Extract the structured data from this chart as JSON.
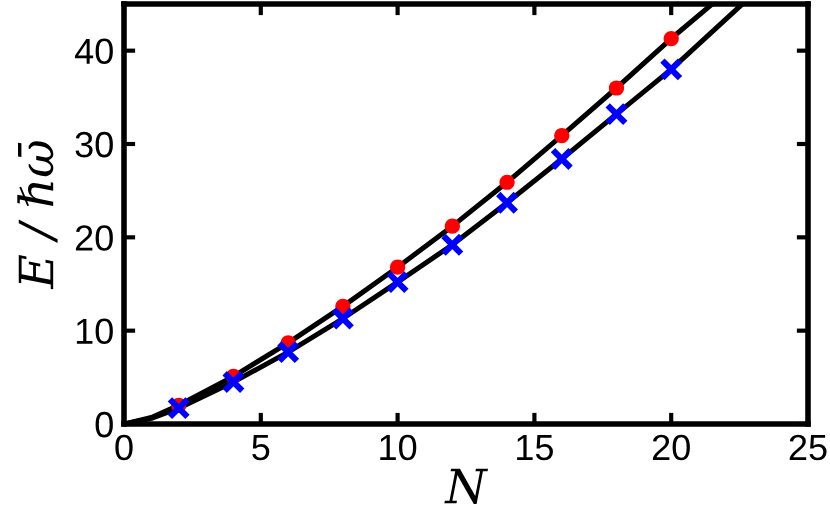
{
  "chart_data": {
    "type": "scatter",
    "xlabel": "N",
    "ylabel": "E / ℏω̄",
    "xlim": [
      0,
      25
    ],
    "ylim": [
      0,
      45
    ],
    "xticks": [
      0,
      5,
      10,
      15,
      20,
      25
    ],
    "yticks": [
      0,
      10,
      20,
      30,
      40
    ],
    "grid": false,
    "legend": false,
    "series": [
      {
        "type": "line",
        "color": "#000000",
        "marker": "none",
        "line_style": "solid",
        "x": [
          0,
          1,
          2,
          4,
          6,
          8,
          10,
          12,
          14,
          16,
          18,
          20,
          21.5
        ],
        "values": [
          0,
          0.7,
          2.0,
          5.1,
          8.7,
          12.6,
          16.8,
          21.2,
          25.9,
          30.9,
          36.0,
          41.3,
          45
        ]
      },
      {
        "type": "line",
        "color": "#000000",
        "marker": "none",
        "line_style": "solid",
        "x": [
          0,
          1,
          2,
          4,
          6,
          8,
          10,
          12,
          14,
          16,
          18,
          20,
          22.6
        ],
        "values": [
          0,
          0.6,
          1.7,
          4.5,
          7.7,
          11.3,
          15.2,
          19.2,
          23.7,
          28.4,
          33.2,
          38.0,
          45
        ]
      },
      {
        "color": "#ff0000",
        "marker": "circle",
        "x": [
          2,
          4,
          6,
          8,
          10,
          12,
          14,
          16,
          18,
          20
        ],
        "values": [
          2.0,
          5.1,
          8.7,
          12.6,
          16.8,
          21.2,
          25.9,
          30.9,
          36.0,
          41.3
        ]
      },
      {
        "color": "#0000ff",
        "marker": "cross",
        "x": [
          2,
          4,
          6,
          8,
          10,
          12,
          14,
          16,
          18,
          20
        ],
        "values": [
          1.7,
          4.5,
          7.7,
          11.3,
          15.2,
          19.2,
          23.7,
          28.4,
          33.2,
          38.0
        ]
      }
    ]
  }
}
